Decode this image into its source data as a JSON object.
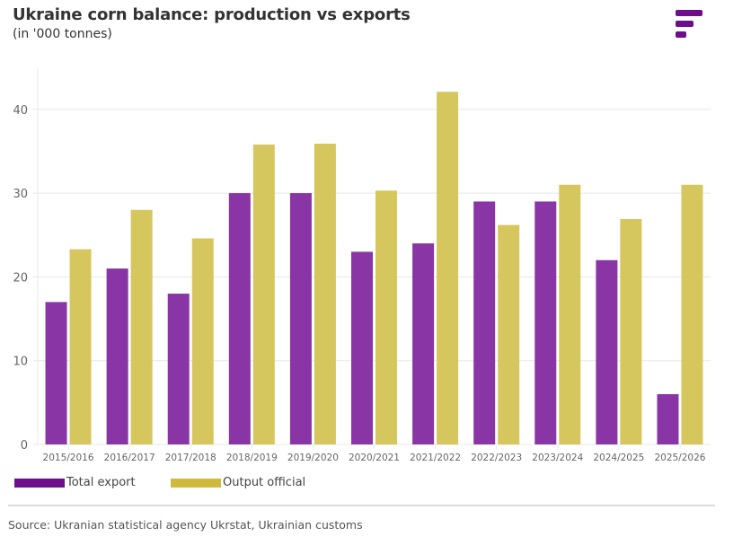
{
  "header": {
    "title": "Ukraine corn balance: production vs exports",
    "subtitle": "(in '000 tonnes)",
    "logo_icon": "brand-bars-logo"
  },
  "colors": {
    "total_export": "#8935a5",
    "output_official": "#d6c65e",
    "legend_export": "#6f0e8b",
    "legend_output": "#cfba3e",
    "grid": "#e8e8e8",
    "logo": "#6f0e8b"
  },
  "chart_data": {
    "type": "bar",
    "title": "Ukraine corn balance: production vs exports",
    "subtitle": "(in '000 tonnes)",
    "xlabel": "",
    "ylabel": "",
    "ylim": [
      0,
      45
    ],
    "yticks": [
      0,
      10,
      20,
      30,
      40
    ],
    "ytick_labels": [
      "0",
      "10",
      "20",
      "30",
      "40"
    ],
    "grid": true,
    "legend_position": "bottom-left",
    "categories": [
      "2015/2016",
      "2016/2017",
      "2017/2018",
      "2018/2019",
      "2019/2020",
      "2020/2021",
      "2021/2022",
      "2022/2023",
      "2023/2024",
      "2024/2025",
      "2025/2026"
    ],
    "series": [
      {
        "name": "Total export",
        "values": [
          17,
          21,
          18,
          30,
          30,
          23,
          24,
          29,
          29,
          22,
          6
        ]
      },
      {
        "name": "Output official",
        "values": [
          23.3,
          28.0,
          24.6,
          35.8,
          35.9,
          30.3,
          42.1,
          26.2,
          31.0,
          26.9,
          31.0
        ]
      }
    ]
  },
  "legend": [
    {
      "label": "Total export"
    },
    {
      "label": "Output official"
    }
  ],
  "footer": {
    "source": "Source: Ukranian statistical agency Ukrstat, Ukrainian customs"
  }
}
